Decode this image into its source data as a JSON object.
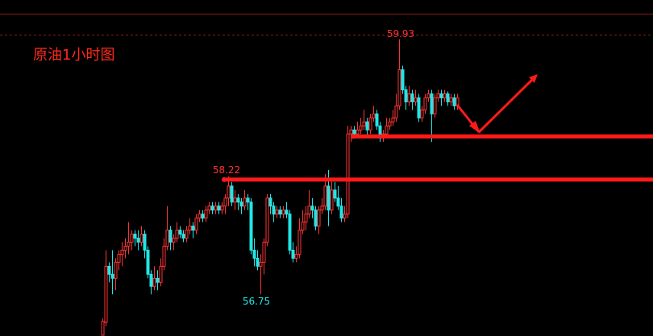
{
  "chart_data": {
    "type": "candlestick",
    "title": "原油1小时图",
    "ylim": [
      56.23,
      60.42
    ],
    "colors": {
      "up": "#ff3333",
      "down": "#22e5e5",
      "flat": "#ffffff",
      "support": "#ff1a1a",
      "label_high": "#ff3333",
      "label_low": "#22e5e5"
    },
    "annotations": {
      "high_label": "59.93",
      "mid_label": "58.22",
      "low_label": "56.75",
      "support_levels": [
        58.72,
        58.18
      ]
    },
    "ohlc": [
      [
        56.05,
        56.45,
        55.8,
        56.4
      ],
      [
        56.4,
        57.3,
        56.35,
        57.1
      ],
      [
        57.1,
        57.15,
        56.9,
        57.0
      ],
      [
        57.0,
        57.3,
        56.75,
        56.95
      ],
      [
        56.95,
        57.2,
        56.8,
        57.15
      ],
      [
        57.15,
        57.3,
        57.05,
        57.25
      ],
      [
        57.25,
        57.4,
        57.1,
        57.3
      ],
      [
        57.3,
        57.45,
        57.2,
        57.35
      ],
      [
        57.35,
        57.65,
        57.25,
        57.4
      ],
      [
        57.4,
        57.55,
        57.3,
        57.5
      ],
      [
        57.5,
        57.55,
        57.35,
        57.45
      ],
      [
        57.45,
        57.55,
        57.3,
        57.4
      ],
      [
        57.4,
        57.6,
        57.35,
        57.5
      ],
      [
        57.5,
        57.55,
        57.2,
        57.3
      ],
      [
        57.3,
        57.35,
        56.95,
        57.0
      ],
      [
        57.0,
        57.05,
        56.75,
        56.85
      ],
      [
        56.85,
        57.1,
        56.8,
        56.95
      ],
      [
        56.95,
        57.05,
        56.8,
        56.9
      ],
      [
        56.9,
        57.2,
        56.85,
        57.1
      ],
      [
        57.1,
        57.45,
        57.05,
        57.35
      ],
      [
        57.35,
        57.85,
        57.3,
        57.55
      ],
      [
        57.55,
        57.6,
        57.3,
        57.4
      ],
      [
        57.4,
        57.5,
        57.3,
        57.45
      ],
      [
        57.45,
        57.65,
        57.4,
        57.55
      ],
      [
        57.55,
        57.6,
        57.45,
        57.5
      ],
      [
        57.5,
        57.55,
        57.4,
        57.45
      ],
      [
        57.45,
        57.6,
        57.4,
        57.55
      ],
      [
        57.55,
        57.7,
        57.5,
        57.6
      ],
      [
        57.6,
        57.65,
        57.45,
        57.55
      ],
      [
        57.55,
        57.75,
        57.5,
        57.7
      ],
      [
        57.7,
        57.8,
        57.65,
        57.75
      ],
      [
        57.75,
        57.8,
        57.65,
        57.7
      ],
      [
        57.7,
        57.85,
        57.65,
        57.8
      ],
      [
        57.8,
        57.9,
        57.75,
        57.85
      ],
      [
        57.85,
        57.9,
        57.75,
        57.8
      ],
      [
        57.8,
        57.9,
        57.75,
        57.85
      ],
      [
        57.85,
        57.9,
        57.75,
        57.8
      ],
      [
        57.8,
        57.9,
        57.75,
        57.85
      ],
      [
        57.85,
        58.0,
        57.75,
        57.95
      ],
      [
        57.95,
        58.22,
        57.85,
        58.1
      ],
      [
        58.1,
        58.15,
        57.85,
        57.9
      ],
      [
        57.9,
        58.05,
        57.8,
        57.95
      ],
      [
        57.95,
        58.0,
        57.8,
        57.9
      ],
      [
        57.9,
        57.95,
        57.75,
        57.85
      ],
      [
        57.85,
        58.05,
        57.8,
        57.95
      ],
      [
        57.95,
        58.0,
        57.8,
        57.9
      ],
      [
        57.9,
        57.95,
        57.25,
        57.3
      ],
      [
        57.3,
        57.45,
        57.1,
        57.2
      ],
      [
        57.2,
        57.3,
        57.05,
        57.1
      ],
      [
        57.1,
        57.25,
        56.75,
        57.15
      ],
      [
        57.15,
        57.45,
        57.0,
        57.4
      ],
      [
        57.4,
        58.0,
        57.35,
        57.95
      ],
      [
        57.95,
        58.0,
        57.75,
        57.85
      ],
      [
        57.85,
        57.9,
        57.65,
        57.75
      ],
      [
        57.75,
        57.85,
        57.7,
        57.8
      ],
      [
        57.8,
        57.85,
        57.7,
        57.75
      ],
      [
        57.75,
        57.85,
        57.7,
        57.8
      ],
      [
        57.8,
        57.9,
        57.7,
        57.75
      ],
      [
        57.75,
        57.8,
        57.25,
        57.3
      ],
      [
        57.3,
        57.4,
        57.15,
        57.2
      ],
      [
        57.2,
        57.35,
        57.15,
        57.25
      ],
      [
        57.25,
        57.7,
        57.2,
        57.55
      ],
      [
        57.55,
        57.8,
        57.5,
        57.65
      ],
      [
        57.65,
        57.85,
        57.55,
        57.75
      ],
      [
        57.75,
        58.05,
        57.7,
        57.85
      ],
      [
        57.85,
        57.95,
        57.7,
        57.8
      ],
      [
        57.8,
        57.85,
        57.55,
        57.6
      ],
      [
        57.6,
        57.85,
        57.5,
        57.8
      ],
      [
        57.8,
        57.95,
        57.75,
        57.85
      ],
      [
        57.85,
        58.25,
        57.8,
        58.1
      ],
      [
        58.1,
        58.3,
        57.6,
        57.8
      ],
      [
        57.8,
        58.2,
        57.75,
        58.05
      ],
      [
        58.05,
        58.15,
        57.9,
        57.95
      ],
      [
        57.95,
        58.1,
        57.8,
        57.85
      ],
      [
        57.85,
        57.95,
        57.65,
        57.7
      ],
      [
        57.7,
        57.85,
        57.65,
        57.75
      ],
      [
        57.75,
        58.85,
        57.7,
        58.75
      ],
      [
        58.75,
        58.85,
        58.65,
        58.8
      ],
      [
        58.8,
        58.85,
        58.7,
        58.75
      ],
      [
        58.75,
        58.9,
        58.7,
        58.8
      ],
      [
        58.8,
        58.95,
        58.75,
        58.85
      ],
      [
        58.85,
        59.05,
        58.8,
        58.9
      ],
      [
        58.9,
        58.95,
        58.7,
        58.8
      ],
      [
        58.8,
        59.0,
        58.75,
        58.95
      ],
      [
        58.95,
        59.1,
        58.9,
        59.0
      ],
      [
        59.0,
        59.05,
        58.8,
        58.85
      ],
      [
        58.85,
        58.9,
        58.65,
        58.7
      ],
      [
        58.7,
        58.8,
        58.65,
        58.75
      ],
      [
        58.75,
        58.95,
        58.7,
        58.85
      ],
      [
        58.85,
        58.95,
        58.8,
        58.9
      ],
      [
        58.9,
        59.05,
        58.85,
        58.95
      ],
      [
        58.95,
        59.25,
        58.9,
        59.1
      ],
      [
        59.1,
        59.93,
        59.05,
        59.55
      ],
      [
        59.55,
        59.6,
        59.25,
        59.3
      ],
      [
        59.3,
        59.35,
        59.05,
        59.15
      ],
      [
        59.15,
        59.35,
        59.1,
        59.25
      ],
      [
        59.25,
        59.3,
        59.05,
        59.15
      ],
      [
        59.15,
        59.3,
        59.1,
        59.2
      ],
      [
        59.2,
        59.25,
        58.9,
        58.95
      ],
      [
        58.95,
        59.1,
        58.9,
        59.05
      ],
      [
        59.05,
        59.25,
        59.0,
        59.2
      ],
      [
        59.2,
        59.3,
        59.15,
        59.25
      ],
      [
        59.25,
        59.3,
        58.65,
        59.0
      ],
      [
        59.0,
        59.25,
        58.95,
        59.2
      ],
      [
        59.2,
        59.3,
        59.15,
        59.25
      ],
      [
        59.25,
        59.3,
        59.1,
        59.2
      ],
      [
        59.2,
        59.3,
        59.15,
        59.25
      ],
      [
        59.25,
        59.28,
        59.1,
        59.15
      ],
      [
        59.15,
        59.25,
        59.1,
        59.2
      ],
      [
        59.2,
        59.25,
        59.05,
        59.1
      ],
      [
        59.1,
        59.25,
        59.05,
        59.2
      ]
    ]
  }
}
